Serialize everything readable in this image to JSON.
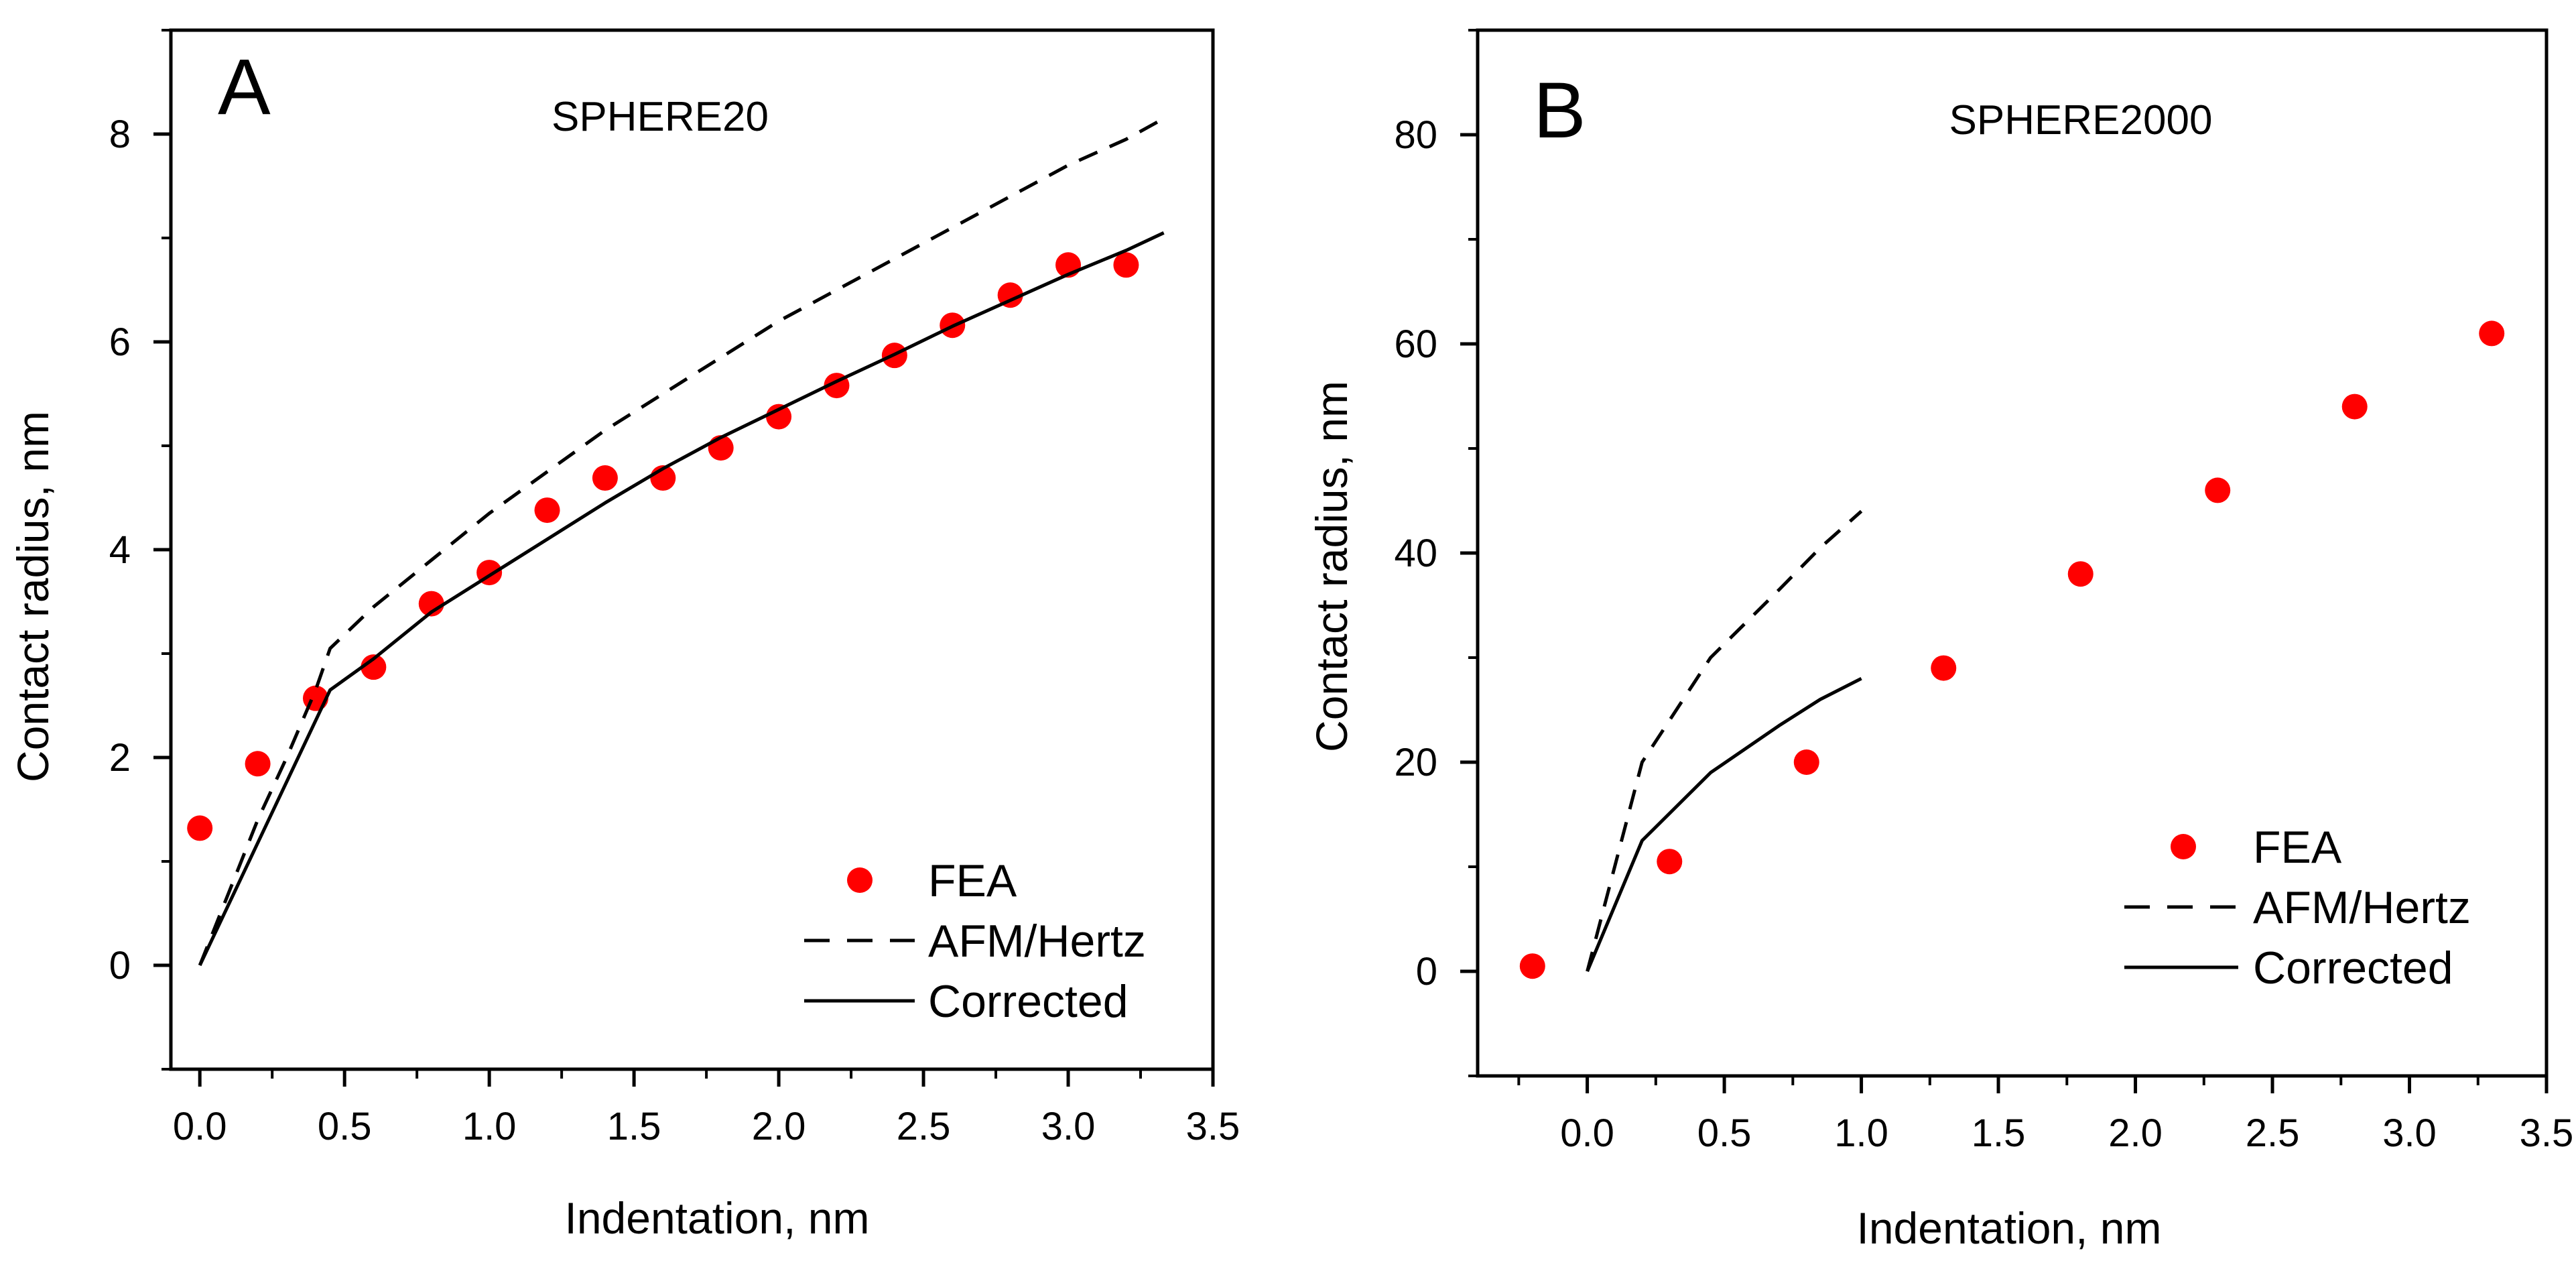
{
  "chart_data": [
    {
      "type": "scatter",
      "panel_label": "A",
      "title": "SPHERE20",
      "xlabel": "Indentation, nm",
      "ylabel": "Contact radius, nm",
      "xlim": [
        -0.1,
        3.5
      ],
      "ylim": [
        -1,
        9
      ],
      "xticks": [
        "0.0",
        "0.5",
        "1.0",
        "1.5",
        "2.0",
        "2.5",
        "3.0",
        "3.5"
      ],
      "yticks": [
        "0",
        "2",
        "4",
        "6",
        "8"
      ],
      "grid": false,
      "legend_position": "bottom-right",
      "series": [
        {
          "name": "FEA",
          "style": "markers",
          "color": "#ff0000",
          "x": [
            0.0,
            0.2,
            0.4,
            0.6,
            0.8,
            1.0,
            1.2,
            1.4,
            1.6,
            1.8,
            2.0,
            2.2,
            2.4,
            2.6,
            2.8,
            3.0,
            3.2
          ],
          "y": [
            1.32,
            1.94,
            2.57,
            2.87,
            3.48,
            3.78,
            4.38,
            4.69,
            4.69,
            4.98,
            5.28,
            5.58,
            5.87,
            6.16,
            6.45,
            6.74,
            6.74
          ]
        },
        {
          "name": "AFM/Hertz",
          "style": "dashed",
          "color": "#000000",
          "x": [
            0.0,
            0.1,
            0.2,
            0.3,
            0.4,
            0.45,
            0.6,
            0.8,
            1.0,
            1.2,
            1.4,
            1.6,
            1.8,
            2.0,
            2.2,
            2.4,
            2.6,
            2.8,
            3.0,
            3.2,
            3.33
          ],
          "y": [
            0.0,
            0.7,
            1.4,
            2.0,
            2.65,
            3.05,
            3.45,
            3.9,
            4.35,
            4.75,
            5.15,
            5.5,
            5.85,
            6.2,
            6.5,
            6.8,
            7.1,
            7.4,
            7.7,
            7.95,
            8.15
          ]
        },
        {
          "name": "Corrected",
          "style": "solid",
          "color": "#000000",
          "x": [
            0.0,
            0.45,
            0.6,
            0.8,
            1.0,
            1.2,
            1.4,
            1.6,
            1.8,
            2.0,
            2.2,
            2.4,
            2.6,
            2.8,
            3.0,
            3.2,
            3.33
          ],
          "y": [
            0.0,
            2.65,
            2.95,
            3.4,
            3.75,
            4.1,
            4.45,
            4.78,
            5.08,
            5.35,
            5.62,
            5.88,
            6.15,
            6.4,
            6.65,
            6.88,
            7.05
          ]
        }
      ]
    },
    {
      "type": "scatter",
      "panel_label": "B",
      "title": "SPHERE2000",
      "xlabel": "Indentation, nm",
      "ylabel": "Contact radius, nm",
      "xlim": [
        -0.4,
        3.5
      ],
      "ylim": [
        -10,
        90
      ],
      "xticks": [
        "0.0",
        "0.5",
        "1.0",
        "1.5",
        "2.0",
        "2.5",
        "3.0",
        "3.5"
      ],
      "yticks": [
        "0",
        "20",
        "40",
        "60",
        "80"
      ],
      "grid": false,
      "legend_position": "bottom-right",
      "series": [
        {
          "name": "FEA",
          "style": "markers",
          "color": "#ff0000",
          "x": [
            -0.2,
            0.3,
            0.8,
            1.3,
            1.8,
            2.3,
            2.8,
            3.3
          ],
          "y": [
            0.5,
            10.5,
            20.0,
            29.0,
            38.0,
            46.0,
            54.0,
            61.0
          ]
        },
        {
          "name": "AFM/Hertz",
          "style": "dashed",
          "color": "#000000",
          "x": [
            0.0,
            0.2,
            0.45,
            0.7,
            0.85,
            1.0
          ],
          "y": [
            0.0,
            20.0,
            30.0,
            36.5,
            40.5,
            44.0
          ]
        },
        {
          "name": "Corrected",
          "style": "solid",
          "color": "#000000",
          "x": [
            0.0,
            0.2,
            0.45,
            0.7,
            0.85,
            1.0
          ],
          "y": [
            0.0,
            12.5,
            19.0,
            23.5,
            26.0,
            28.0
          ]
        }
      ]
    }
  ]
}
